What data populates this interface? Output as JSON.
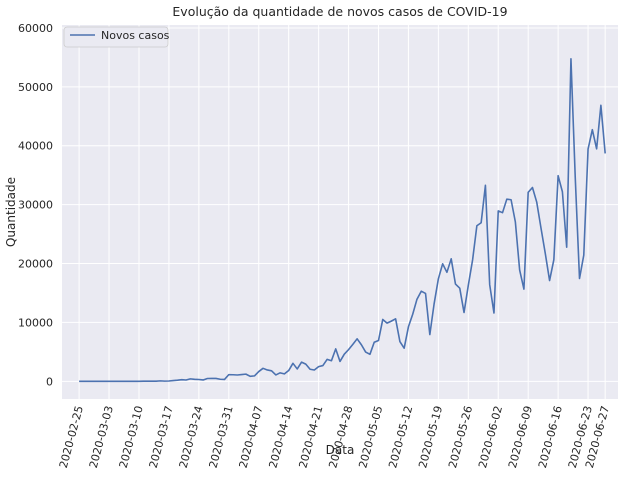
{
  "chart_data": {
    "type": "line",
    "title": "Evolução da quantidade de novos casos de COVID-19",
    "xlabel": "Data",
    "ylabel": "Quantidade",
    "grid": true,
    "legend_position": "top-left",
    "xlim": [
      "2020-02-21",
      "2020-06-30"
    ],
    "ylim": [
      -3000,
      60500
    ],
    "yticks": [
      0,
      10000,
      20000,
      30000,
      40000,
      50000,
      60000
    ],
    "xticks": [
      "2020-02-25",
      "2020-03-03",
      "2020-03-10",
      "2020-03-17",
      "2020-03-24",
      "2020-03-31",
      "2020-04-07",
      "2020-04-14",
      "2020-04-21",
      "2020-04-28",
      "2020-05-05",
      "2020-05-12",
      "2020-05-19",
      "2020-05-26",
      "2020-06-02",
      "2020-06-09",
      "2020-06-16",
      "2020-06-23",
      "2020-06-27"
    ],
    "colors": {
      "background": "#eaeaf2",
      "grid": "#ffffff",
      "series": "#4c72b0"
    },
    "series": [
      {
        "name": "Novos casos",
        "points": [
          [
            "2020-02-25",
            0
          ],
          [
            "2020-02-26",
            0
          ],
          [
            "2020-02-27",
            0
          ],
          [
            "2020-02-28",
            0
          ],
          [
            "2020-02-29",
            0
          ],
          [
            "2020-03-01",
            0
          ],
          [
            "2020-03-02",
            0
          ],
          [
            "2020-03-03",
            0
          ],
          [
            "2020-03-04",
            0
          ],
          [
            "2020-03-05",
            4
          ],
          [
            "2020-03-06",
            5
          ],
          [
            "2020-03-07",
            6
          ],
          [
            "2020-03-08",
            6
          ],
          [
            "2020-03-09",
            5
          ],
          [
            "2020-03-10",
            9
          ],
          [
            "2020-03-11",
            18
          ],
          [
            "2020-03-12",
            25
          ],
          [
            "2020-03-13",
            21
          ],
          [
            "2020-03-14",
            23
          ],
          [
            "2020-03-15",
            79
          ],
          [
            "2020-03-16",
            34
          ],
          [
            "2020-03-17",
            57
          ],
          [
            "2020-03-18",
            137
          ],
          [
            "2020-03-19",
            193
          ],
          [
            "2020-03-20",
            283
          ],
          [
            "2020-03-21",
            224
          ],
          [
            "2020-03-22",
            418
          ],
          [
            "2020-03-23",
            345
          ],
          [
            "2020-03-24",
            310
          ],
          [
            "2020-03-25",
            232
          ],
          [
            "2020-03-26",
            482
          ],
          [
            "2020-03-27",
            502
          ],
          [
            "2020-03-28",
            487
          ],
          [
            "2020-03-29",
            352
          ],
          [
            "2020-03-30",
            323
          ],
          [
            "2020-03-31",
            1138
          ],
          [
            "2020-04-01",
            1119
          ],
          [
            "2020-04-02",
            1074
          ],
          [
            "2020-04-03",
            1146
          ],
          [
            "2020-04-04",
            1222
          ],
          [
            "2020-04-05",
            852
          ],
          [
            "2020-04-06",
            926
          ],
          [
            "2020-04-07",
            1661
          ],
          [
            "2020-04-08",
            2210
          ],
          [
            "2020-04-09",
            1930
          ],
          [
            "2020-04-10",
            1781
          ],
          [
            "2020-04-11",
            1089
          ],
          [
            "2020-04-12",
            1442
          ],
          [
            "2020-04-13",
            1261
          ],
          [
            "2020-04-14",
            1832
          ],
          [
            "2020-04-15",
            3058
          ],
          [
            "2020-04-16",
            2105
          ],
          [
            "2020-04-17",
            3257
          ],
          [
            "2020-04-18",
            2917
          ],
          [
            "2020-04-19",
            2055
          ],
          [
            "2020-04-20",
            1927
          ],
          [
            "2020-04-21",
            2498
          ],
          [
            "2020-04-22",
            2678
          ],
          [
            "2020-04-23",
            3735
          ],
          [
            "2020-04-24",
            3503
          ],
          [
            "2020-04-25",
            5514
          ],
          [
            "2020-04-26",
            3379
          ],
          [
            "2020-04-27",
            4613
          ],
          [
            "2020-04-28",
            5385
          ],
          [
            "2020-04-29",
            6276
          ],
          [
            "2020-04-30",
            7218
          ],
          [
            "2020-05-01",
            6209
          ],
          [
            "2020-05-02",
            4970
          ],
          [
            "2020-05-03",
            4588
          ],
          [
            "2020-05-04",
            6633
          ],
          [
            "2020-05-05",
            6935
          ],
          [
            "2020-05-06",
            10503
          ],
          [
            "2020-05-07",
            9888
          ],
          [
            "2020-05-08",
            10222
          ],
          [
            "2020-05-09",
            10611
          ],
          [
            "2020-05-10",
            6760
          ],
          [
            "2020-05-11",
            5632
          ],
          [
            "2020-05-12",
            9258
          ],
          [
            "2020-05-13",
            11385
          ],
          [
            "2020-05-14",
            13944
          ],
          [
            "2020-05-15",
            15305
          ],
          [
            "2020-05-16",
            14919
          ],
          [
            "2020-05-17",
            7938
          ],
          [
            "2020-05-18",
            13140
          ],
          [
            "2020-05-19",
            17408
          ],
          [
            "2020-05-20",
            19951
          ],
          [
            "2020-05-21",
            18508
          ],
          [
            "2020-05-22",
            20803
          ],
          [
            "2020-05-23",
            16508
          ],
          [
            "2020-05-24",
            15813
          ],
          [
            "2020-05-25",
            11687
          ],
          [
            "2020-05-26",
            16324
          ],
          [
            "2020-05-27",
            20599
          ],
          [
            "2020-05-28",
            26417
          ],
          [
            "2020-05-29",
            26928
          ],
          [
            "2020-05-30",
            33274
          ],
          [
            "2020-05-31",
            16409
          ],
          [
            "2020-06-01",
            11598
          ],
          [
            "2020-06-02",
            28936
          ],
          [
            "2020-06-03",
            28633
          ],
          [
            "2020-06-04",
            30925
          ],
          [
            "2020-06-05",
            30830
          ],
          [
            "2020-06-06",
            27075
          ],
          [
            "2020-06-07",
            18921
          ],
          [
            "2020-06-08",
            15654
          ],
          [
            "2020-06-09",
            32091
          ],
          [
            "2020-06-10",
            32913
          ],
          [
            "2020-06-11",
            30412
          ],
          [
            "2020-06-12",
            25982
          ],
          [
            "2020-06-13",
            21704
          ],
          [
            "2020-06-14",
            17110
          ],
          [
            "2020-06-15",
            20647
          ],
          [
            "2020-06-16",
            34918
          ],
          [
            "2020-06-17",
            32188
          ],
          [
            "2020-06-18",
            22765
          ],
          [
            "2020-06-19",
            54771
          ],
          [
            "2020-06-20",
            34666
          ],
          [
            "2020-06-21",
            17459
          ],
          [
            "2020-06-22",
            21432
          ],
          [
            "2020-06-23",
            39436
          ],
          [
            "2020-06-24",
            42725
          ],
          [
            "2020-06-25",
            39483
          ],
          [
            "2020-06-26",
            46860
          ],
          [
            "2020-06-27",
            38693
          ]
        ]
      }
    ]
  }
}
